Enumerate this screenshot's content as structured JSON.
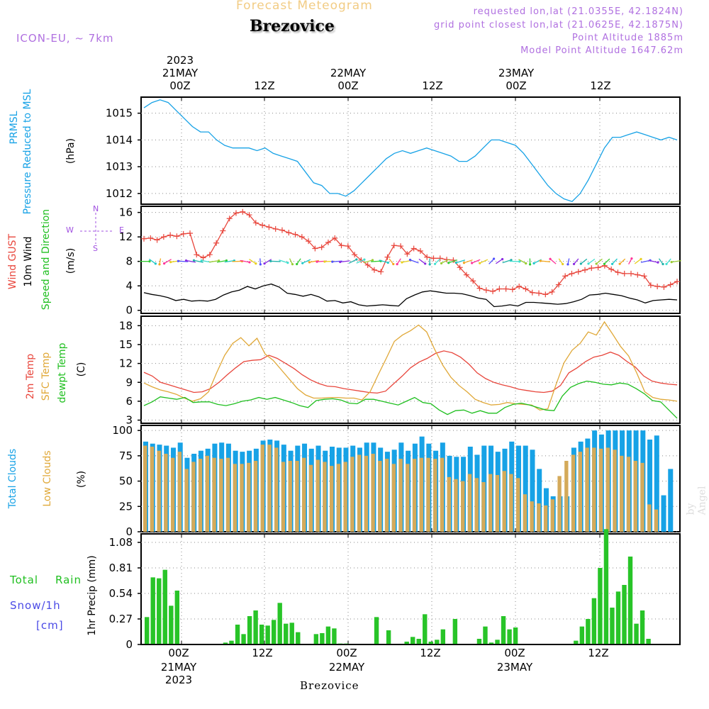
{
  "header": {
    "title": "Forecast Meteogram",
    "location": "Brezovice",
    "model": "ICON-EU, ~ 7km",
    "requested": "requested lon,lat (21.0355E, 42.1824N)",
    "closest": "grid point closest lon,lat (21.0625E, 42.1875N)",
    "point_alt": "Point Altitude 1885m",
    "model_alt": "Model Point Altitude 1647.62m",
    "footer": "Brezovice",
    "watermark": "by Angel"
  },
  "time_axis": {
    "labels": [
      "00Z",
      "12Z",
      "00Z",
      "12Z",
      "00Z",
      "12Z"
    ],
    "top_dates": [
      {
        "year": "2023",
        "day": "21MAY"
      },
      {
        "day": "22MAY"
      },
      {
        "day": "23MAY"
      }
    ],
    "bottom_dates": [
      {
        "day": "21MAY",
        "year": "2023"
      },
      {
        "day": "22MAY"
      },
      {
        "day": "23MAY"
      }
    ]
  },
  "labels": {
    "p1_a": "PRMSL",
    "p1_b": "Pressure Reduced to MSL",
    "p1_unit": "(hPa)",
    "p2_gust": "Wind GUST",
    "p2_wind": "10m Wind",
    "p2_dir": "Speed and Direction",
    "p2_unit": "(m/s)",
    "compass_n": "N",
    "compass_s": "S",
    "compass_w": "W",
    "compass_e": "E",
    "p3_a": "2m Temp",
    "p3_b": "SFC Temp",
    "p3_c": "dewpt Temp",
    "p3_unit": "(C)",
    "p4_a": "Total Clouds",
    "p4_b": "Low Clouds",
    "p4_unit": "(%)",
    "p5_total": "Total",
    "p5_rain": "Rain",
    "p5_snow": "Snow/1h",
    "p5_cm": "[cm]",
    "p5_unit": "1hr Precip (mm)"
  },
  "chart_data": [
    {
      "type": "line",
      "name": "pressure",
      "ylabel": "(hPa)",
      "ylim": [
        1011.6,
        1015.6
      ],
      "yticks": [
        1012,
        1013,
        1014,
        1015
      ],
      "x_hours_from": -9,
      "x_hours_to": 55,
      "series": [
        {
          "name": "PRMSL",
          "color": "#17a2e6",
          "step": 1,
          "values": [
            1015.2,
            1015.4,
            1015.5,
            1015.4,
            1015.1,
            1014.8,
            1014.5,
            1014.3,
            1014.3,
            1014.0,
            1013.8,
            1013.7,
            1013.7,
            1013.7,
            1013.6,
            1013.7,
            1013.5,
            1013.4,
            1013.3,
            1013.2,
            1012.8,
            1012.4,
            1012.3,
            1012.0,
            1012.0,
            1011.9,
            1012.1,
            1012.4,
            1012.7,
            1013.0,
            1013.3,
            1013.5,
            1013.6,
            1013.5,
            1013.6,
            1013.7,
            1013.6,
            1013.5,
            1013.4,
            1013.2,
            1013.2,
            1013.4,
            1013.7,
            1014.0,
            1014.0,
            1013.9,
            1013.8,
            1013.5,
            1013.1,
            1012.7,
            1012.3,
            1012.0,
            1011.8,
            1011.7,
            1012.0,
            1012.5,
            1013.1,
            1013.7,
            1014.1,
            1014.1,
            1014.2,
            1014.3,
            1014.2,
            1014.1,
            1014.0,
            1014.1,
            1014.0
          ]
        }
      ]
    },
    {
      "type": "line",
      "name": "wind",
      "ylabel": "(m/s)",
      "ylim": [
        -0.5,
        17
      ],
      "yticks": [
        0,
        4,
        8,
        12,
        16
      ],
      "series": [
        {
          "name": "Wind GUST",
          "color": "#e8463c",
          "values": [
            11.7,
            11.8,
            11.5,
            12.0,
            12.3,
            12.1,
            12.5,
            12.6,
            9.1,
            8.6,
            9.1,
            11.0,
            13.0,
            15.0,
            15.9,
            16.1,
            15.6,
            14.3,
            13.9,
            13.6,
            13.3,
            13.1,
            12.7,
            12.4,
            12.0,
            11.3,
            10.1,
            10.3,
            11.1,
            11.8,
            10.6,
            10.5,
            9.1,
            8.2,
            7.4,
            6.6,
            6.3,
            8.7,
            10.6,
            10.5,
            9.2,
            10.1,
            9.7,
            8.7,
            8.5,
            8.5,
            8.3,
            8.2,
            7.0,
            5.8,
            4.8,
            3.6,
            3.3,
            3.1,
            3.5,
            3.5,
            3.4,
            3.9,
            3.5,
            2.9,
            2.8,
            2.6,
            3.0,
            4.2,
            5.6,
            6.0,
            6.3,
            6.6,
            6.9,
            7.0,
            7.3,
            6.7,
            6.2,
            6.0,
            6.0,
            5.8,
            5.6,
            4.1,
            3.9,
            3.8,
            4.2,
            4.7
          ]
        },
        {
          "name": "10m Wind",
          "color": "#000000",
          "values": [
            2.9,
            2.6,
            2.4,
            2.1,
            1.6,
            1.8,
            1.5,
            1.6,
            1.5,
            1.8,
            2.5,
            3.0,
            3.3,
            3.9,
            3.5,
            4.0,
            4.3,
            3.8,
            2.8,
            2.6,
            2.3,
            2.6,
            2.2,
            1.5,
            1.6,
            1.2,
            1.4,
            0.9,
            0.7,
            0.8,
            0.9,
            0.8,
            0.7,
            1.9,
            2.5,
            3.0,
            3.2,
            3.0,
            2.8,
            2.8,
            2.7,
            2.4,
            2.0,
            1.8,
            0.6,
            0.7,
            0.9,
            0.7,
            1.3,
            1.3,
            1.2,
            1.1,
            1.0,
            1.1,
            1.4,
            1.8,
            2.5,
            2.6,
            2.8,
            2.6,
            2.4,
            2.0,
            1.7,
            1.2,
            1.6,
            1.7,
            1.8,
            1.7
          ]
        }
      ],
      "arrow_band_y": 8
    },
    {
      "type": "line",
      "name": "temperature",
      "ylabel": "(C)",
      "ylim": [
        2.5,
        19.5
      ],
      "yticks": [
        3,
        6,
        9,
        12,
        15,
        18
      ],
      "series": [
        {
          "name": "2m Temp",
          "color": "#e8463c",
          "values": [
            10.6,
            10.0,
            9.0,
            8.6,
            8.2,
            7.8,
            7.4,
            7.5,
            8.0,
            9.0,
            10.2,
            11.3,
            12.3,
            12.5,
            12.6,
            13.3,
            12.8,
            12.0,
            11.2,
            10.2,
            9.4,
            8.8,
            8.4,
            8.3,
            8.0,
            7.8,
            7.6,
            7.4,
            7.3,
            7.6,
            8.8,
            10.0,
            11.3,
            12.2,
            12.8,
            13.6,
            14.0,
            13.7,
            13.0,
            11.9,
            10.5,
            9.6,
            9.0,
            8.6,
            8.3,
            7.9,
            7.7,
            7.5,
            7.4,
            7.6,
            8.5,
            10.5,
            11.3,
            12.3,
            13.0,
            13.3,
            13.8,
            13.3,
            12.3,
            11.4,
            10.0,
            9.2,
            8.9,
            8.7,
            8.6
          ]
        },
        {
          "name": "SFC Temp",
          "color": "#e0a838",
          "values": [
            8.9,
            8.3,
            7.8,
            7.5,
            7.1,
            6.5,
            6.0,
            6.4,
            7.5,
            10.5,
            13.3,
            15.2,
            16.1,
            14.8,
            16.0,
            13.5,
            12.5,
            11.0,
            9.5,
            8.0,
            7.0,
            6.5,
            6.5,
            6.6,
            6.6,
            6.5,
            6.5,
            6.2,
            7.5,
            10.2,
            12.8,
            15.5,
            16.5,
            17.2,
            18.1,
            17.0,
            14.2,
            11.7,
            9.8,
            8.5,
            7.5,
            6.3,
            5.8,
            5.4,
            5.5,
            5.8,
            5.6,
            5.5,
            5.4,
            4.6,
            4.8,
            8.6,
            12.1,
            14.1,
            15.2,
            17.0,
            16.5,
            18.6,
            16.7,
            14.7,
            13.2,
            10.5,
            7.5,
            6.6,
            6.3,
            6.2,
            6.0
          ]
        },
        {
          "name": "dewpt Temp",
          "color": "#1fbf1f",
          "values": [
            5.3,
            5.9,
            6.7,
            6.5,
            6.3,
            6.6,
            5.8,
            5.9,
            5.9,
            5.5,
            5.3,
            5.6,
            6.0,
            6.2,
            6.6,
            6.3,
            6.6,
            6.2,
            5.8,
            5.3,
            5.0,
            6.1,
            6.3,
            6.4,
            6.2,
            5.7,
            5.6,
            6.3,
            6.3,
            6.0,
            5.7,
            5.4,
            6.0,
            6.6,
            5.8,
            5.6,
            4.6,
            3.9,
            4.5,
            4.6,
            4.1,
            4.5,
            4.1,
            4.1,
            5.0,
            5.5,
            5.7,
            5.4,
            5.0,
            4.6,
            4.5,
            6.8,
            8.2,
            8.8,
            9.2,
            9.0,
            8.7,
            8.6,
            8.9,
            8.7,
            8.0,
            7.2,
            6.1,
            5.9,
            4.6,
            3.3
          ]
        }
      ]
    },
    {
      "type": "bar",
      "name": "clouds",
      "ylabel": "(%)",
      "ylim": [
        0,
        105
      ],
      "yticks": [
        0,
        25,
        50,
        75,
        100
      ],
      "series": [
        {
          "name": "Total Clouds",
          "color": "#17a2e6",
          "values": [
            89,
            87,
            86,
            85,
            83,
            88,
            73,
            77,
            80,
            82,
            87,
            88,
            87,
            80,
            79,
            80,
            82,
            90,
            91,
            90,
            86,
            80,
            85,
            87,
            82,
            85,
            80,
            84,
            83,
            83,
            85,
            83,
            88,
            88,
            83,
            79,
            81,
            88,
            80,
            87,
            94,
            87,
            80,
            88,
            75,
            74,
            74,
            84,
            76,
            85,
            85,
            79,
            82,
            89,
            85,
            85,
            81,
            62,
            43,
            35,
            35,
            35,
            83,
            89,
            92,
            100,
            96,
            100,
            100,
            100,
            100,
            100,
            100,
            91,
            95,
            36,
            62
          ]
        },
        {
          "name": "Low Clouds",
          "color": "#d4aa5a",
          "values": [
            85,
            84,
            80,
            77,
            73,
            79,
            62,
            69,
            72,
            75,
            73,
            72,
            73,
            67,
            67,
            68,
            70,
            86,
            86,
            83,
            69,
            70,
            70,
            73,
            66,
            71,
            69,
            65,
            67,
            69,
            74,
            76,
            75,
            77,
            70,
            72,
            67,
            72,
            67,
            72,
            73,
            73,
            72,
            73,
            54,
            52,
            50,
            57,
            53,
            49,
            57,
            56,
            60,
            57,
            53,
            37,
            30,
            28,
            26,
            32,
            55,
            70,
            76,
            79,
            83,
            83,
            82,
            83,
            81,
            75,
            74,
            70,
            68,
            27,
            22
          ]
        }
      ]
    },
    {
      "type": "bar",
      "name": "precipitation",
      "ylabel": "1hr Precip (mm)",
      "ylim": [
        0,
        1.17
      ],
      "yticks": [
        0,
        0.27,
        0.54,
        0.81,
        1.08
      ],
      "series": [
        {
          "name": "1hr Precip",
          "color": "#28c428",
          "values": [
            0.29,
            0.71,
            0.7,
            0.79,
            0.41,
            0.57,
            0,
            0,
            0,
            0,
            0,
            0,
            0,
            0.02,
            0.04,
            0.21,
            0.11,
            0.3,
            0.36,
            0.21,
            0.2,
            0.26,
            0.44,
            0.22,
            0.23,
            0.13,
            0,
            0,
            0.11,
            0.12,
            0.19,
            0.17,
            0.01,
            0.01,
            0,
            0,
            0,
            0,
            0.29,
            0,
            0.15,
            0,
            0,
            0.03,
            0.08,
            0.06,
            0.32,
            0.03,
            0.05,
            0.16,
            0,
            0.27,
            0,
            0,
            0,
            0.06,
            0.19,
            0.02,
            0.05,
            0.3,
            0.16,
            0.18,
            0,
            0,
            0,
            0,
            0,
            0,
            0,
            0,
            0,
            0.04,
            0.19,
            0.27,
            0.49,
            0.81,
            1.22,
            0.39,
            0.56,
            0.63,
            0.93,
            0.22,
            0.36,
            0.06,
            0,
            0,
            0,
            0
          ]
        }
      ]
    }
  ]
}
